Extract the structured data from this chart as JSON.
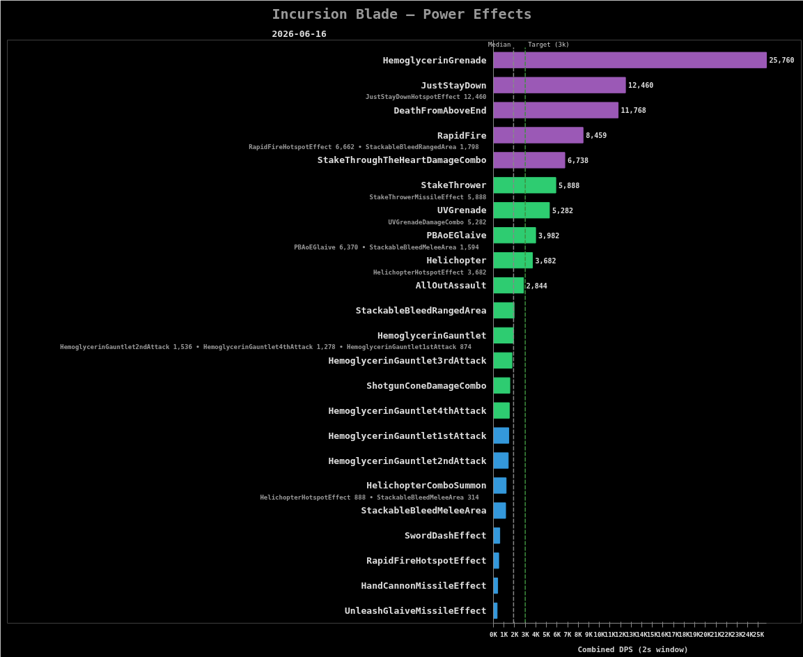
{
  "chart_data": {
    "type": "bar",
    "orientation": "horizontal",
    "title": "Incursion Blade — Power Effects",
    "subtitle": "2026-06-16",
    "xlabel": "Combined DPS (2s window)",
    "categories": [
      "HemoglycerinGrenade",
      "JustStayDown",
      "DeathFromAboveEnd",
      "RapidFire",
      "StakeThroughTheHeartDamageCombo",
      "StakeThrower",
      "UVGrenade",
      "PBAoEGlaive",
      "Helichopter",
      "AllOutAssault",
      "StackableBleedRangedArea",
      "HemoglycerinGauntlet",
      "HemoglycerinGauntlet3rdAttack",
      "ShotgunConeDamageCombo",
      "HemoglycerinGauntlet4thAttack",
      "HemoglycerinGauntlet1stAttack",
      "HemoglycerinGauntlet2ndAttack",
      "HelichopterComboSummon",
      "StackableBleedMeleeArea",
      "SwordDashEffect",
      "RapidFireHotspotEffect",
      "HandCannonMissileEffect",
      "UnleashGlaiveMissileEffect"
    ],
    "values": [
      25760,
      12460,
      11768,
      8459,
      6738,
      5888,
      5282,
      3982,
      3682,
      2844,
      1950,
      1900,
      1750,
      1550,
      1500,
      1450,
      1400,
      1200,
      1150,
      600,
      500,
      400,
      350
    ],
    "value_labels": [
      "25,760",
      "12,460",
      "11,768",
      "8,459",
      "6,738",
      "5,888",
      "5,282",
      "3,982",
      "3,682",
      "2,844",
      null,
      null,
      null,
      null,
      null,
      null,
      null,
      null,
      null,
      null,
      null,
      null,
      null
    ],
    "colors": [
      "#9b59b6",
      "#9b59b6",
      "#9b59b6",
      "#9b59b6",
      "#9b59b6",
      "#2ecc71",
      "#2ecc71",
      "#2ecc71",
      "#2ecc71",
      "#2ecc71",
      "#2ecc71",
      "#2ecc71",
      "#2ecc71",
      "#2ecc71",
      "#2ecc71",
      "#3498db",
      "#3498db",
      "#3498db",
      "#3498db",
      "#3498db",
      "#3498db",
      "#3498db",
      "#3498db"
    ],
    "annotations": [
      null,
      "JustStayDownHotspotEffect 12,460",
      null,
      "RapidFireHotspotEffect 6,662  •  StackableBleedRangedArea 1,798",
      null,
      "StakeThrowerMissileEffect 5,888",
      "UVGrenadeDamageCombo 5,282",
      "PBAoEGlaive 6,370  •  StackableBleedMeleeArea 1,594",
      "HelichopterHotspotEffect 3,682",
      null,
      null,
      "HemoglycerinGauntlet2ndAttack 1,536  •  HemoglycerinGauntlet4thAttack 1,278  •  HemoglycerinGauntlet1stAttack 874",
      null,
      null,
      null,
      null,
      null,
      "HelichopterHotspotEffect 888  •  StackableBleedMeleeArea 314",
      null,
      null,
      null,
      null,
      null
    ],
    "ref_lines": [
      {
        "axis": "x",
        "value": 1900,
        "label": "Median",
        "color": "#888888",
        "line_style": "dashed"
      },
      {
        "axis": "x",
        "value": 3000,
        "label": "Target (3k)",
        "color": "#3f8f3f",
        "line_style": "dashed"
      }
    ],
    "xlim": [
      0,
      25760
    ],
    "xticks": [
      {
        "value": 0,
        "label": "0K"
      },
      {
        "value": 1000,
        "label": "1K"
      },
      {
        "value": 2000,
        "label": "2K"
      },
      {
        "value": 3000,
        "label": "3K"
      },
      {
        "value": 4000,
        "label": "4K"
      },
      {
        "value": 5000,
        "label": "5K"
      },
      {
        "value": 6000,
        "label": "6K"
      },
      {
        "value": 7000,
        "label": "7K"
      },
      {
        "value": 8000,
        "label": "8K"
      },
      {
        "value": 9000,
        "label": "9K"
      },
      {
        "value": 10000,
        "label": "10K"
      },
      {
        "value": 11000,
        "label": "11K"
      },
      {
        "value": 12000,
        "label": "12K"
      },
      {
        "value": 13000,
        "label": "13K"
      },
      {
        "value": 14000,
        "label": "14K"
      },
      {
        "value": 15000,
        "label": "15K"
      },
      {
        "value": 16000,
        "label": "16K"
      },
      {
        "value": 17000,
        "label": "17K"
      },
      {
        "value": 18000,
        "label": "18K"
      },
      {
        "value": 19000,
        "label": "19K"
      },
      {
        "value": 20000,
        "label": "20K"
      },
      {
        "value": 21000,
        "label": "21K"
      },
      {
        "value": 22000,
        "label": "22K"
      },
      {
        "value": 23000,
        "label": "23K"
      },
      {
        "value": 24000,
        "label": "24K"
      },
      {
        "value": 25000,
        "label": "25K"
      }
    ],
    "grid": false
  }
}
